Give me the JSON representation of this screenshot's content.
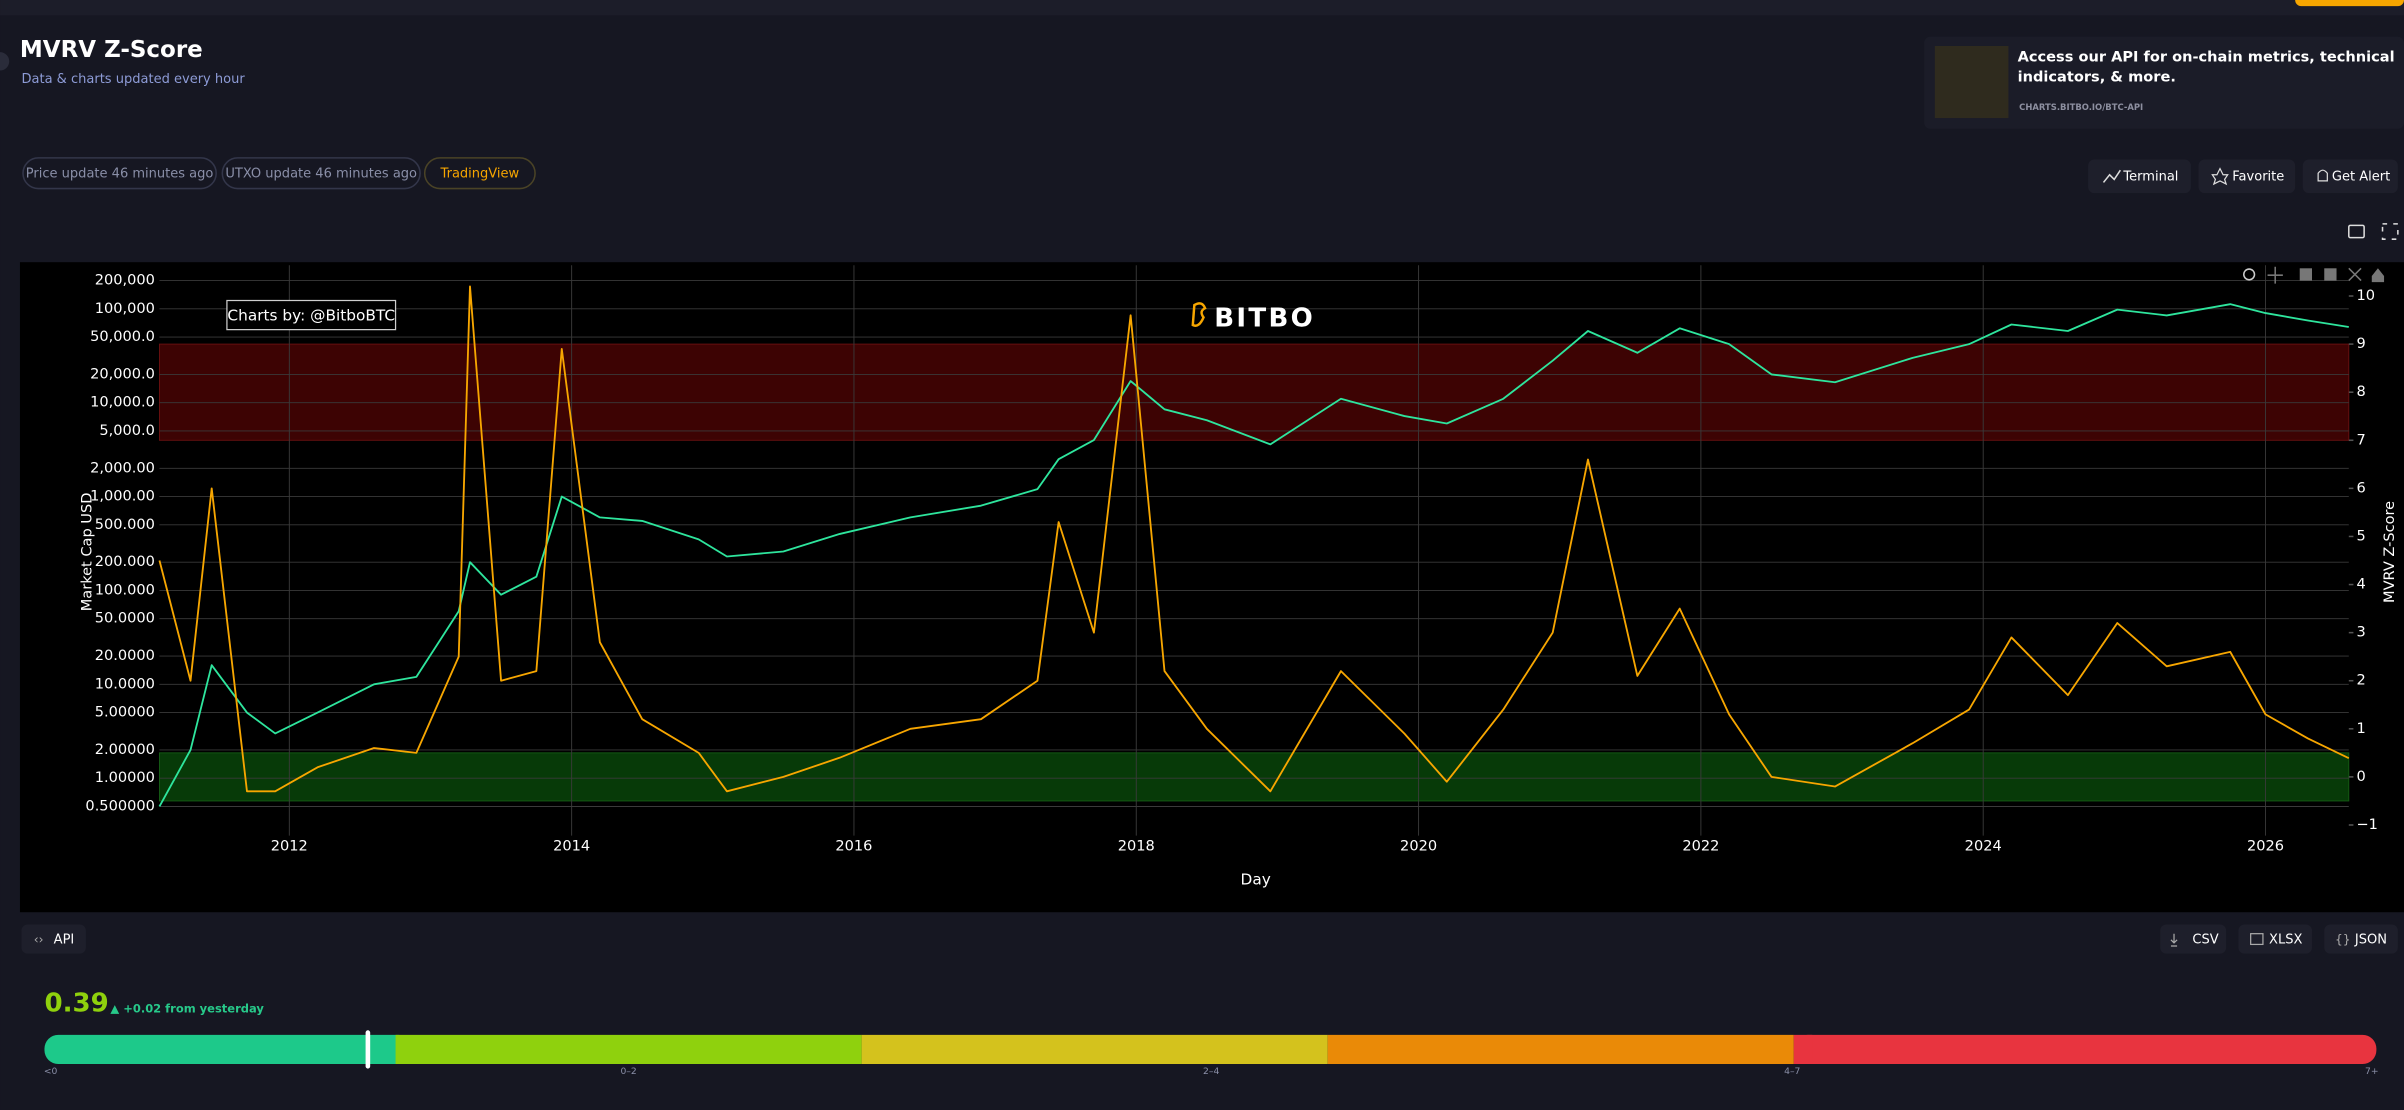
{
  "header": {
    "title": "MVRV Z-Score",
    "subtitle": "Data & charts updated every hour"
  },
  "promo": {
    "text": "Access our API for on-chain metrics, technical indicators, & more.",
    "link": "CHARTS.BITBO.IO/BTC-API"
  },
  "status_chips": [
    "Price update 46 minutes ago",
    "UTXO update 46 minutes ago",
    "TradingView"
  ],
  "actions": [
    "Terminal",
    "Favorite",
    "Get Alert"
  ],
  "chart_data": {
    "type": "line",
    "watermark": "Charts by: @BitboBTC",
    "logo": "BITBO",
    "xlabel": "Day",
    "ylabel": "Market Cap USD",
    "y2label": "MVRV Z-Score",
    "x": [
      2011.08,
      2011.3,
      2011.45,
      2011.7,
      2011.9,
      2012.2,
      2012.6,
      2012.9,
      2013.2,
      2013.28,
      2013.5,
      2013.75,
      2013.93,
      2014.2,
      2014.5,
      2014.9,
      2015.1,
      2015.5,
      2015.9,
      2016.4,
      2016.9,
      2017.3,
      2017.45,
      2017.7,
      2017.96,
      2018.2,
      2018.5,
      2018.95,
      2019.45,
      2019.9,
      2020.2,
      2020.6,
      2020.95,
      2021.2,
      2021.55,
      2021.85,
      2022.2,
      2022.5,
      2022.95,
      2023.5,
      2023.9,
      2024.2,
      2024.6,
      2024.95,
      2025.3,
      2025.75,
      2026.0,
      2026.3,
      2026.59
    ],
    "series": [
      {
        "color": "#2ee59d",
        "values": [
          0.5,
          2,
          16,
          5,
          3,
          5,
          10,
          12,
          60,
          200,
          90,
          140,
          1000,
          600,
          550,
          350,
          230,
          260,
          400,
          600,
          800,
          1200,
          2500,
          4000,
          17000,
          8500,
          6500,
          3600,
          11000,
          7200,
          6000,
          11000,
          28000,
          58000,
          34000,
          62000,
          42000,
          20000,
          16500,
          30000,
          42000,
          68000,
          58000,
          98000,
          85000,
          112000,
          90000,
          75000,
          64000
        ]
      },
      {
        "color": "#f7a600",
        "axis": "y2",
        "values": [
          4.5,
          2,
          6,
          -0.3,
          -0.3,
          0.2,
          0.6,
          0.5,
          2.5,
          10.2,
          2,
          2.2,
          8.9,
          2.8,
          1.2,
          0.5,
          -0.3,
          0,
          0.4,
          1,
          1.2,
          2,
          5.3,
          3,
          9.6,
          2.2,
          1,
          -0.3,
          2.2,
          0.9,
          -0.1,
          1.4,
          3,
          6.6,
          2.1,
          3.5,
          1.3,
          0,
          -0.2,
          0.7,
          1.4,
          2.9,
          1.7,
          3.2,
          2.3,
          2.6,
          1.3,
          0.8,
          0.39
        ]
      }
    ],
    "xlim": [
      2011.08,
      2026.59
    ],
    "xticks": [
      2012,
      2014,
      2016,
      2018,
      2020,
      2022,
      2024,
      2026
    ],
    "ylim": [
      0.245,
      291000
    ],
    "yscale": "log",
    "yticks": [
      {
        "value": 200000,
        "label": "200,000"
      },
      {
        "value": 100000,
        "label": "100,000"
      },
      {
        "value": 50000,
        "label": "50,000.0"
      },
      {
        "value": 20000,
        "label": "20,000.0"
      },
      {
        "value": 10000,
        "label": "10,000.0"
      },
      {
        "value": 5000,
        "label": "5,000.0"
      },
      {
        "value": 2000,
        "label": "2,000.00"
      },
      {
        "value": 1000,
        "label": "1,000.00"
      },
      {
        "value": 500,
        "label": "500.000"
      },
      {
        "value": 200,
        "label": "200.000"
      },
      {
        "value": 100,
        "label": "100.000"
      },
      {
        "value": 50,
        "label": "50.0000"
      },
      {
        "value": 20,
        "label": "20.0000"
      },
      {
        "value": 10,
        "label": "10.0000"
      },
      {
        "value": 5,
        "label": "5.00000"
      },
      {
        "value": 2,
        "label": "2.00000"
      },
      {
        "value": 1,
        "label": "1.00000"
      },
      {
        "value": 0.5,
        "label": "0.500000"
      }
    ],
    "y2lim": [
      -1.22,
      10.64
    ],
    "y2ticks": [
      {
        "value": -1,
        "label": "−1"
      },
      0,
      1,
      2,
      3,
      4,
      5,
      6,
      7,
      8,
      9,
      10
    ],
    "bands": [
      {
        "from": 7,
        "to": 9,
        "color": "#3d0303"
      },
      {
        "from": -0.5,
        "to": 0.5,
        "color": "#073a08"
      }
    ],
    "grid": true
  },
  "downloads": {
    "api": "API",
    "formats": [
      "CSV",
      "XLSX",
      "JSON"
    ]
  },
  "gauge": {
    "value": 0.39,
    "change": "▲ +0.02 from yesterday",
    "labels": [
      "<0",
      "0–2",
      "2–4",
      "4–7",
      "7+"
    ]
  }
}
